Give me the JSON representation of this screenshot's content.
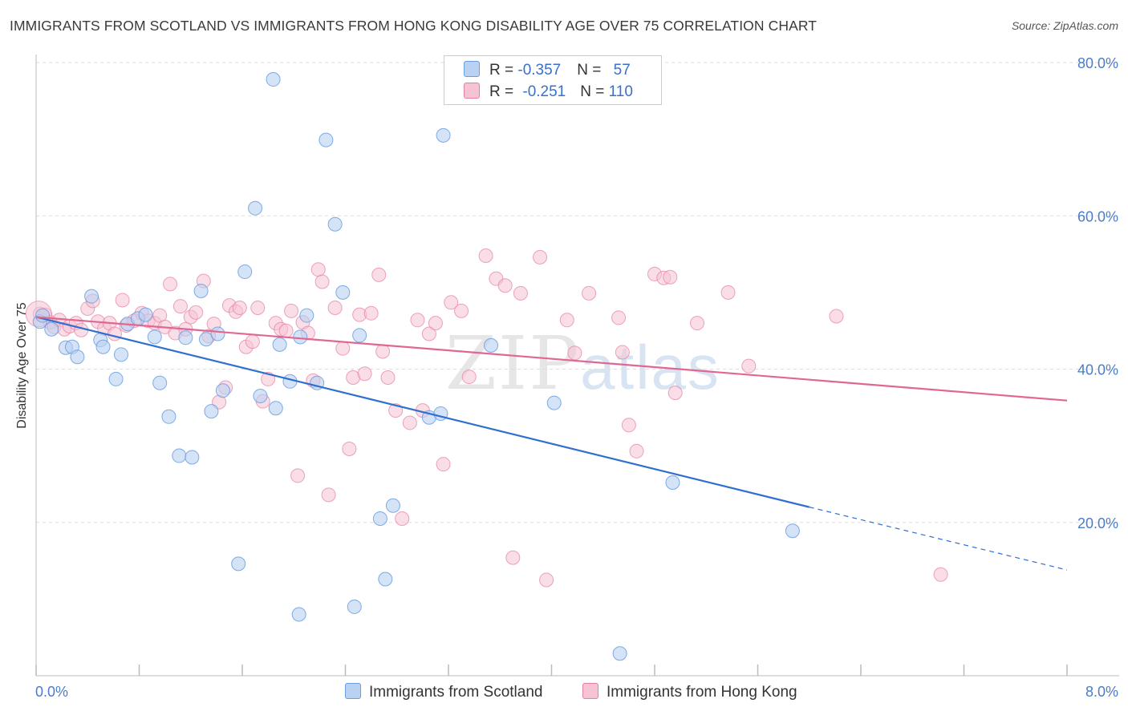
{
  "header": {
    "title": "IMMIGRANTS FROM SCOTLAND VS IMMIGRANTS FROM HONG KONG DISABILITY AGE OVER 75 CORRELATION CHART",
    "source": "Source: ZipAtlas.com"
  },
  "watermark": {
    "zip": "ZIP",
    "atlas": "atlas"
  },
  "legend": {
    "row1": {
      "r_label": "R = ",
      "r_value": "-0.357",
      "n_label": "N = ",
      "n_value": "57"
    },
    "row2": {
      "r_label": "R = ",
      "r_value": "-0.251",
      "n_label": "N = ",
      "n_value": "110"
    }
  },
  "colors": {
    "scotland": "#6a9de0",
    "scotland_fill": "#b9d1f2",
    "hongkong": "#e57ea0",
    "hongkong_fill": "#f6c3d3",
    "scotland_line": "#2f6fcf",
    "hongkong_line": "#e06794",
    "tick": "#4a7cc9"
  },
  "chart_data": {
    "type": "scatter",
    "title": "IMMIGRANTS FROM SCOTLAND VS IMMIGRANTS FROM HONG KONG DISABILITY AGE OVER 75 CORRELATION CHART",
    "xlabel": "",
    "ylabel": "Disability Age Over 75",
    "xlim": [
      0,
      8
    ],
    "ylim": [
      0,
      80
    ],
    "x_tick_labels": [
      "0.0%",
      "8.0%"
    ],
    "y_ticks": [
      20,
      40,
      60,
      80
    ],
    "y_tick_labels": [
      "20.0%",
      "40.0%",
      "60.0%",
      "80.0%"
    ],
    "series": [
      {
        "name": "Immigrants from Scotland",
        "r": -0.357,
        "n": 57,
        "trend": {
          "x0": 0.0,
          "y0": 46.8,
          "x1": 6.0,
          "y1": 22.0,
          "dash_to_x": 8.0,
          "dash_to_y": 13.8
        },
        "points": [
          [
            0.03,
            46.2
          ],
          [
            0.05,
            47.0
          ],
          [
            0.12,
            45.2
          ],
          [
            0.23,
            42.8
          ],
          [
            0.28,
            42.9
          ],
          [
            0.32,
            41.6
          ],
          [
            0.43,
            49.5
          ],
          [
            0.5,
            43.8
          ],
          [
            0.52,
            42.9
          ],
          [
            0.62,
            38.7
          ],
          [
            0.66,
            41.9
          ],
          [
            0.71,
            45.9
          ],
          [
            0.79,
            46.6
          ],
          [
            0.85,
            47.1
          ],
          [
            0.92,
            44.2
          ],
          [
            0.96,
            38.2
          ],
          [
            1.03,
            33.8
          ],
          [
            1.11,
            28.7
          ],
          [
            1.16,
            44.1
          ],
          [
            1.21,
            28.5
          ],
          [
            1.28,
            50.2
          ],
          [
            1.32,
            43.9
          ],
          [
            1.36,
            34.5
          ],
          [
            1.41,
            44.6
          ],
          [
            1.45,
            37.2
          ],
          [
            1.57,
            14.6
          ],
          [
            1.62,
            52.7
          ],
          [
            1.7,
            61.0
          ],
          [
            1.74,
            36.5
          ],
          [
            1.84,
            77.8
          ],
          [
            1.86,
            34.9
          ],
          [
            1.89,
            43.2
          ],
          [
            1.97,
            38.4
          ],
          [
            2.04,
            8.0
          ],
          [
            2.05,
            44.2
          ],
          [
            2.1,
            47.0
          ],
          [
            2.18,
            38.2
          ],
          [
            2.25,
            69.9
          ],
          [
            2.32,
            58.9
          ],
          [
            2.38,
            50.0
          ],
          [
            2.47,
            9.0
          ],
          [
            2.51,
            44.4
          ],
          [
            2.67,
            20.5
          ],
          [
            2.71,
            12.6
          ],
          [
            2.77,
            22.2
          ],
          [
            3.05,
            33.7
          ],
          [
            3.14,
            34.2
          ],
          [
            3.16,
            70.5
          ],
          [
            3.53,
            43.1
          ],
          [
            4.02,
            35.6
          ],
          [
            4.53,
            2.9
          ],
          [
            4.94,
            25.2
          ],
          [
            5.87,
            18.9
          ]
        ]
      },
      {
        "name": "Immigrants from Hong Kong",
        "r": -0.251,
        "n": 110,
        "trend": {
          "x0": 0.0,
          "y0": 46.8,
          "x1": 8.0,
          "y1": 35.9
        },
        "points": [
          [
            0.03,
            47.2
          ],
          [
            0.07,
            47.1
          ],
          [
            0.11,
            46.1
          ],
          [
            0.14,
            45.5
          ],
          [
            0.18,
            46.4
          ],
          [
            0.22,
            45.2
          ],
          [
            0.26,
            45.6
          ],
          [
            0.31,
            46.0
          ],
          [
            0.35,
            45.1
          ],
          [
            0.4,
            47.9
          ],
          [
            0.44,
            48.9
          ],
          [
            0.48,
            46.2
          ],
          [
            0.53,
            45.3
          ],
          [
            0.57,
            46.0
          ],
          [
            0.61,
            44.6
          ],
          [
            0.67,
            49.0
          ],
          [
            0.7,
            45.7
          ],
          [
            0.76,
            46.3
          ],
          [
            0.82,
            47.3
          ],
          [
            0.87,
            46.3
          ],
          [
            0.92,
            46.0
          ],
          [
            0.96,
            47.0
          ],
          [
            1.0,
            45.5
          ],
          [
            1.04,
            51.1
          ],
          [
            1.08,
            44.7
          ],
          [
            1.12,
            48.2
          ],
          [
            1.16,
            45.2
          ],
          [
            1.2,
            46.8
          ],
          [
            1.24,
            47.4
          ],
          [
            1.3,
            51.5
          ],
          [
            1.34,
            44.3
          ],
          [
            1.38,
            45.9
          ],
          [
            1.42,
            35.7
          ],
          [
            1.47,
            37.6
          ],
          [
            1.5,
            48.3
          ],
          [
            1.55,
            47.5
          ],
          [
            1.58,
            48.0
          ],
          [
            1.63,
            42.9
          ],
          [
            1.68,
            43.6
          ],
          [
            1.72,
            48.0
          ],
          [
            1.76,
            35.8
          ],
          [
            1.8,
            38.7
          ],
          [
            1.86,
            46.0
          ],
          [
            1.9,
            45.2
          ],
          [
            1.94,
            45.0
          ],
          [
            1.98,
            47.6
          ],
          [
            2.03,
            26.1
          ],
          [
            2.07,
            46.1
          ],
          [
            2.11,
            44.7
          ],
          [
            2.15,
            38.5
          ],
          [
            2.19,
            53.0
          ],
          [
            2.22,
            51.4
          ],
          [
            2.27,
            23.6
          ],
          [
            2.32,
            48.0
          ],
          [
            2.38,
            42.7
          ],
          [
            2.43,
            29.6
          ],
          [
            2.46,
            38.9
          ],
          [
            2.51,
            47.1
          ],
          [
            2.55,
            39.4
          ],
          [
            2.6,
            47.3
          ],
          [
            2.66,
            52.3
          ],
          [
            2.69,
            42.3
          ],
          [
            2.73,
            38.9
          ],
          [
            2.79,
            34.6
          ],
          [
            2.84,
            20.5
          ],
          [
            2.9,
            33.0
          ],
          [
            2.96,
            46.4
          ],
          [
            3.0,
            34.6
          ],
          [
            3.05,
            44.6
          ],
          [
            3.1,
            46.0
          ],
          [
            3.16,
            27.6
          ],
          [
            3.22,
            48.7
          ],
          [
            3.3,
            47.6
          ],
          [
            3.36,
            39.0
          ],
          [
            3.49,
            54.8
          ],
          [
            3.57,
            51.8
          ],
          [
            3.64,
            50.9
          ],
          [
            3.7,
            15.4
          ],
          [
            3.76,
            49.9
          ],
          [
            3.91,
            54.6
          ],
          [
            3.96,
            12.5
          ],
          [
            4.12,
            46.4
          ],
          [
            4.18,
            42.1
          ],
          [
            4.29,
            49.9
          ],
          [
            4.52,
            46.7
          ],
          [
            4.55,
            42.2
          ],
          [
            4.6,
            32.7
          ],
          [
            4.66,
            29.3
          ],
          [
            4.8,
            52.4
          ],
          [
            4.87,
            51.9
          ],
          [
            4.92,
            52.0
          ],
          [
            4.96,
            36.9
          ],
          [
            5.13,
            46.0
          ],
          [
            5.37,
            50.0
          ],
          [
            5.53,
            40.4
          ],
          [
            6.21,
            46.9
          ],
          [
            7.02,
            13.2
          ]
        ]
      }
    ]
  },
  "bottom_legend": {
    "scotland": "Immigrants from Scotland",
    "hongkong": "Immigrants from Hong Kong"
  }
}
